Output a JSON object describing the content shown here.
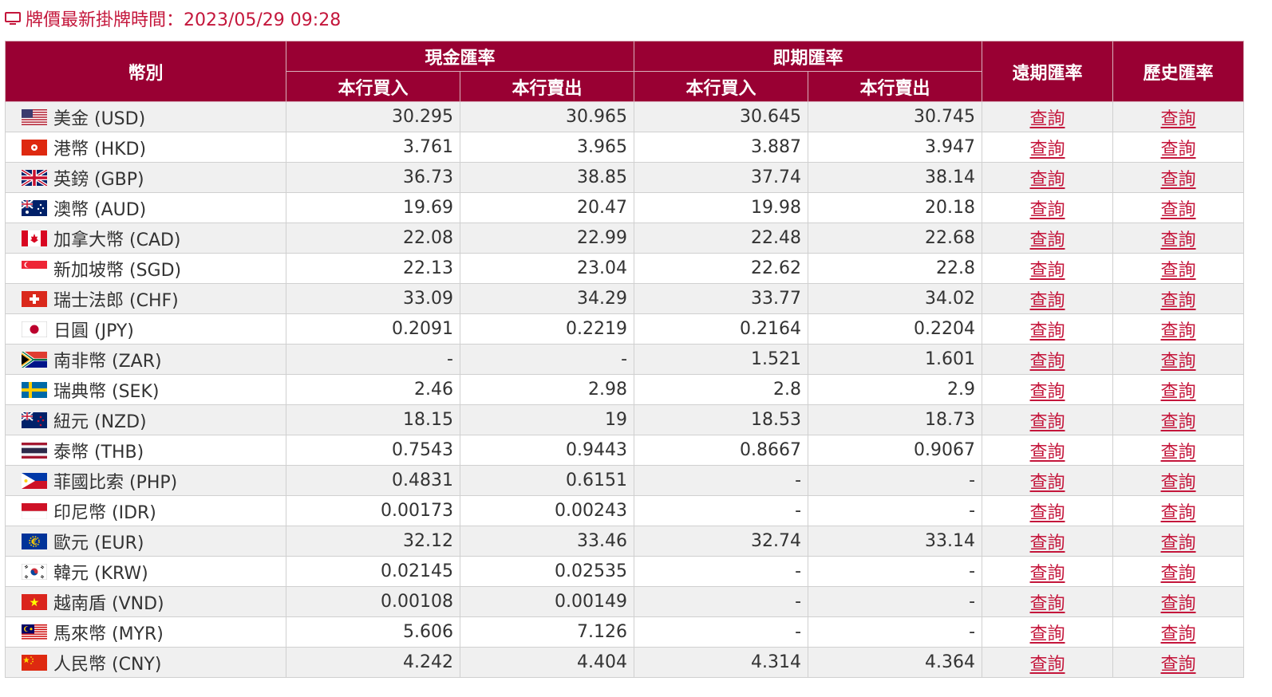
{
  "update": {
    "text": "牌價最新掛牌時間：2023/05/29 09:28"
  },
  "header": {
    "currency": "幣別",
    "cash": "現金匯率",
    "spot": "即期匯率",
    "forward": "遠期匯率",
    "history": "歷史匯率",
    "buy": "本行買入",
    "sell": "本行賣出"
  },
  "rows": [
    {
      "flag": "us-flag-icon",
      "name": "美金 (USD)",
      "cash_buy": "30.295",
      "cash_sell": "30.965",
      "spot_buy": "30.645",
      "spot_sell": "30.745",
      "forward": "查詢",
      "history": "查詢"
    },
    {
      "flag": "hk-flag-icon",
      "name": "港幣 (HKD)",
      "cash_buy": "3.761",
      "cash_sell": "3.965",
      "spot_buy": "3.887",
      "spot_sell": "3.947",
      "forward": "查詢",
      "history": "查詢"
    },
    {
      "flag": "gb-flag-icon",
      "name": "英鎊 (GBP)",
      "cash_buy": "36.73",
      "cash_sell": "38.85",
      "spot_buy": "37.74",
      "spot_sell": "38.14",
      "forward": "查詢",
      "history": "查詢"
    },
    {
      "flag": "au-flag-icon",
      "name": "澳幣 (AUD)",
      "cash_buy": "19.69",
      "cash_sell": "20.47",
      "spot_buy": "19.98",
      "spot_sell": "20.18",
      "forward": "查詢",
      "history": "查詢"
    },
    {
      "flag": "ca-flag-icon",
      "name": "加拿大幣 (CAD)",
      "cash_buy": "22.08",
      "cash_sell": "22.99",
      "spot_buy": "22.48",
      "spot_sell": "22.68",
      "forward": "查詢",
      "history": "查詢"
    },
    {
      "flag": "sg-flag-icon",
      "name": "新加坡幣 (SGD)",
      "cash_buy": "22.13",
      "cash_sell": "23.04",
      "spot_buy": "22.62",
      "spot_sell": "22.8",
      "forward": "查詢",
      "history": "查詢"
    },
    {
      "flag": "ch-flag-icon",
      "name": "瑞士法郎 (CHF)",
      "cash_buy": "33.09",
      "cash_sell": "34.29",
      "spot_buy": "33.77",
      "spot_sell": "34.02",
      "forward": "查詢",
      "history": "查詢"
    },
    {
      "flag": "jp-flag-icon",
      "name": "日圓 (JPY)",
      "cash_buy": "0.2091",
      "cash_sell": "0.2219",
      "spot_buy": "0.2164",
      "spot_sell": "0.2204",
      "forward": "查詢",
      "history": "查詢"
    },
    {
      "flag": "za-flag-icon",
      "name": "南非幣 (ZAR)",
      "cash_buy": "-",
      "cash_sell": "-",
      "spot_buy": "1.521",
      "spot_sell": "1.601",
      "forward": "查詢",
      "history": "查詢"
    },
    {
      "flag": "se-flag-icon",
      "name": "瑞典幣 (SEK)",
      "cash_buy": "2.46",
      "cash_sell": "2.98",
      "spot_buy": "2.8",
      "spot_sell": "2.9",
      "forward": "查詢",
      "history": "查詢"
    },
    {
      "flag": "nz-flag-icon",
      "name": "紐元 (NZD)",
      "cash_buy": "18.15",
      "cash_sell": "19",
      "spot_buy": "18.53",
      "spot_sell": "18.73",
      "forward": "查詢",
      "history": "查詢"
    },
    {
      "flag": "th-flag-icon",
      "name": "泰幣 (THB)",
      "cash_buy": "0.7543",
      "cash_sell": "0.9443",
      "spot_buy": "0.8667",
      "spot_sell": "0.9067",
      "forward": "查詢",
      "history": "查詢"
    },
    {
      "flag": "ph-flag-icon",
      "name": "菲國比索 (PHP)",
      "cash_buy": "0.4831",
      "cash_sell": "0.6151",
      "spot_buy": "-",
      "spot_sell": "-",
      "forward": "查詢",
      "history": "查詢"
    },
    {
      "flag": "id-flag-icon",
      "name": "印尼幣 (IDR)",
      "cash_buy": "0.00173",
      "cash_sell": "0.00243",
      "spot_buy": "-",
      "spot_sell": "-",
      "forward": "查詢",
      "history": "查詢"
    },
    {
      "flag": "eu-flag-icon",
      "name": "歐元 (EUR)",
      "cash_buy": "32.12",
      "cash_sell": "33.46",
      "spot_buy": "32.74",
      "spot_sell": "33.14",
      "forward": "查詢",
      "history": "查詢"
    },
    {
      "flag": "kr-flag-icon",
      "name": "韓元 (KRW)",
      "cash_buy": "0.02145",
      "cash_sell": "0.02535",
      "spot_buy": "-",
      "spot_sell": "-",
      "forward": "查詢",
      "history": "查詢"
    },
    {
      "flag": "vn-flag-icon",
      "name": "越南盾 (VND)",
      "cash_buy": "0.00108",
      "cash_sell": "0.00149",
      "spot_buy": "-",
      "spot_sell": "-",
      "forward": "查詢",
      "history": "查詢"
    },
    {
      "flag": "my-flag-icon",
      "name": "馬來幣 (MYR)",
      "cash_buy": "5.606",
      "cash_sell": "7.126",
      "spot_buy": "-",
      "spot_sell": "-",
      "forward": "查詢",
      "history": "查詢"
    },
    {
      "flag": "cn-flag-icon",
      "name": "人民幣 (CNY)",
      "cash_buy": "4.242",
      "cash_sell": "4.404",
      "spot_buy": "4.314",
      "spot_sell": "4.364",
      "forward": "查詢",
      "history": "查詢"
    }
  ],
  "colors": {
    "header_bg": "#990033",
    "accent_text": "#c4163b",
    "row_alt": "#f0f0f0"
  }
}
